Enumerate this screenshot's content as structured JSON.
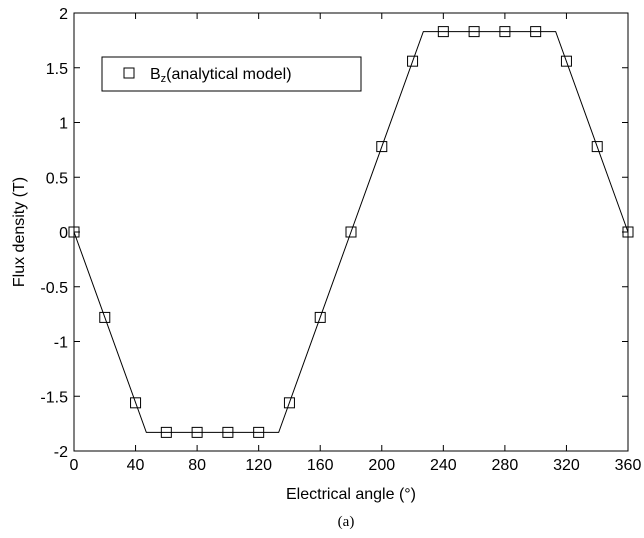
{
  "chart_data": {
    "type": "line",
    "xlabel": "Electrical angle (°)",
    "ylabel": "Flux density (T)",
    "caption": "(a)",
    "xlim": [
      0,
      360
    ],
    "ylim": [
      -2,
      2
    ],
    "xticks": [
      0,
      40,
      80,
      120,
      160,
      200,
      240,
      280,
      320,
      360
    ],
    "yticks": [
      -2,
      -1.5,
      -1,
      -0.5,
      0,
      0.5,
      1,
      1.5,
      2
    ],
    "xtick_labels": [
      "0",
      "40",
      "80",
      "120",
      "160",
      "200",
      "240",
      "280",
      "320",
      "360"
    ],
    "ytick_labels": [
      "-2",
      "-1.5",
      "-1",
      "-0.5",
      "0",
      "0.5",
      "1",
      "1.5",
      "2"
    ],
    "grid": false,
    "legend": {
      "position": "top-left"
    },
    "series": [
      {
        "style": "line",
        "color": "#000000",
        "x": [
          0,
          47,
          133,
          180,
          227,
          313,
          360
        ],
        "y": [
          0,
          -1.83,
          -1.83,
          0,
          1.83,
          1.83,
          0
        ]
      },
      {
        "name_main": "B",
        "name_sub": "z",
        "name_rest": "(analytical model)",
        "style": "square-marker",
        "color": "#000000",
        "x": [
          0,
          20,
          40,
          60,
          80,
          100,
          120,
          140,
          160,
          180,
          200,
          220,
          240,
          260,
          280,
          300,
          320,
          340,
          360
        ],
        "y": [
          0,
          -0.78,
          -1.56,
          -1.83,
          -1.83,
          -1.83,
          -1.83,
          -1.56,
          -0.78,
          0,
          0.78,
          1.56,
          1.83,
          1.83,
          1.83,
          1.83,
          1.56,
          0.78,
          0
        ]
      }
    ]
  }
}
